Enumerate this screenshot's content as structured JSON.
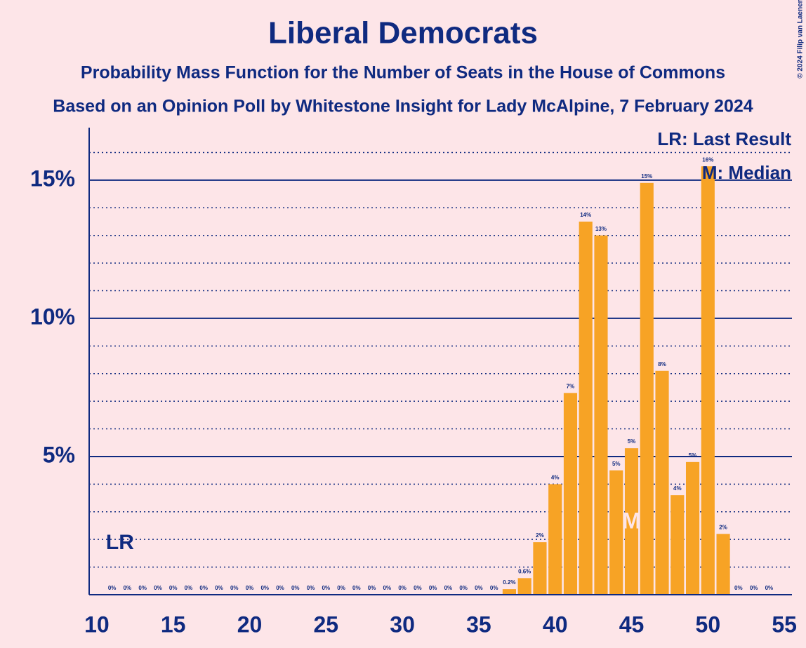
{
  "chart_data": {
    "type": "bar",
    "title": "Liberal Democrats",
    "subtitle": "Probability Mass Function for the Number of Seats in the House of Commons",
    "subtitle2": "Based on an Opinion Poll by Whitestone Insight for Lady McAlpine, 7 February 2024",
    "copyright": "© 2024 Filip van Laenen",
    "legend": [
      "LR: Last Result",
      "M: Median"
    ],
    "annotations": [
      {
        "text": "LR",
        "x": 11
      },
      {
        "text": "M",
        "x": 45
      }
    ],
    "color": "#f7a325",
    "x": [
      11,
      12,
      13,
      14,
      15,
      16,
      17,
      18,
      19,
      20,
      21,
      22,
      23,
      24,
      25,
      26,
      27,
      28,
      29,
      30,
      31,
      32,
      33,
      34,
      35,
      36,
      37,
      38,
      39,
      40,
      41,
      42,
      43,
      44,
      45,
      46,
      47,
      48,
      49,
      50,
      51,
      52,
      53,
      54
    ],
    "values": [
      0,
      0,
      0,
      0,
      0,
      0,
      0,
      0,
      0,
      0,
      0,
      0,
      0,
      0,
      0,
      0,
      0,
      0,
      0,
      0,
      0,
      0,
      0,
      0,
      0,
      0,
      0.2,
      0.6,
      1.9,
      4.0,
      7.3,
      13.5,
      13.0,
      4.5,
      5.3,
      14.9,
      8.1,
      3.6,
      4.8,
      15.5,
      2.2,
      0,
      0,
      0
    ],
    "value_labels": [
      "0%",
      "0%",
      "0%",
      "0%",
      "0%",
      "0%",
      "0%",
      "0%",
      "0%",
      "0%",
      "0%",
      "0%",
      "0%",
      "0%",
      "0%",
      "0%",
      "0%",
      "0%",
      "0%",
      "0%",
      "0%",
      "0%",
      "0%",
      "0%",
      "0%",
      "0%",
      "0.2%",
      "0.6%",
      "2%",
      "4%",
      "7%",
      "14%",
      "13%",
      "5%",
      "5%",
      "15%",
      "8%",
      "4%",
      "5%",
      "16%",
      "2%",
      "0%",
      "0%",
      "0%"
    ],
    "xlim": [
      9.5,
      55.5
    ],
    "xticks": [
      10,
      15,
      20,
      25,
      30,
      35,
      40,
      45,
      50,
      55
    ],
    "ylim": [
      0,
      16.9
    ],
    "yticks": [
      {
        "value": 5,
        "label": "5%"
      },
      {
        "value": 10,
        "label": "10%"
      },
      {
        "value": 15,
        "label": "15%"
      }
    ],
    "minor_yticks": [
      1,
      2,
      3,
      4,
      6,
      7,
      8,
      9,
      11,
      12,
      13,
      14,
      16
    ],
    "grid": true
  }
}
